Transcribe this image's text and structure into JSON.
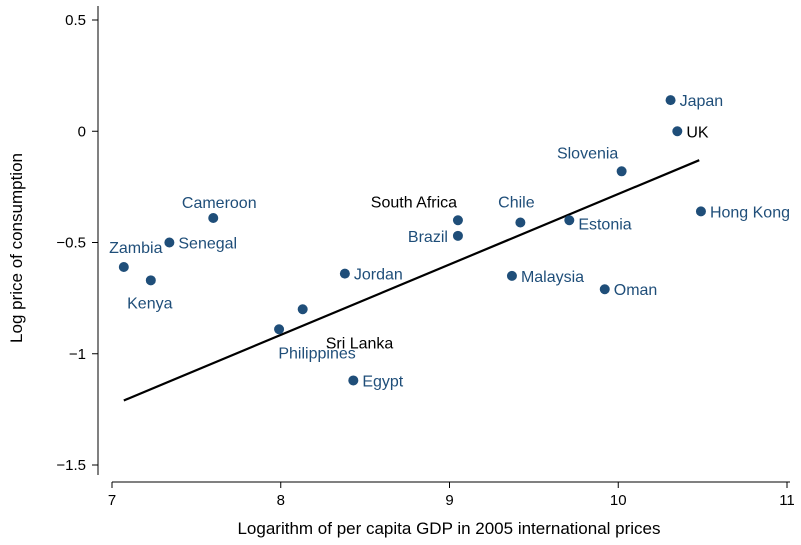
{
  "chart_data": {
    "type": "scatter",
    "xlabel": "Logarithm of per capita GDP in 2005 international prices",
    "ylabel": "Log price of consumption",
    "xlim": [
      6.95,
      11.05
    ],
    "ylim": [
      -1.6,
      0.52
    ],
    "xticks": [
      7,
      8,
      9,
      10,
      11
    ],
    "yticks": [
      0.5,
      0,
      -0.5,
      -1,
      -1.5
    ],
    "ytick_labels": [
      "0.5",
      "0",
      "−0.5",
      "−1",
      "−1.5"
    ],
    "grid": false,
    "colors": {
      "point": "#1f4e79",
      "label_blue": "#1f4e79",
      "label_black": "#000000",
      "fit_line": "#000000"
    },
    "points": [
      {
        "name": "Zambia",
        "x": 7.07,
        "y": -0.61,
        "label": "Zambia",
        "label_color": "blue",
        "anchor": "above"
      },
      {
        "name": "Kenya",
        "x": 7.23,
        "y": -0.67,
        "label": "Kenya",
        "label_color": "blue",
        "anchor": "below"
      },
      {
        "name": "Senegal",
        "x": 7.34,
        "y": -0.5,
        "label": "Senegal",
        "label_color": "blue",
        "anchor": "right"
      },
      {
        "name": "Cameroon",
        "x": 7.6,
        "y": -0.39,
        "label": "Cameroon",
        "label_color": "blue",
        "anchor": "above"
      },
      {
        "name": "Philippines",
        "x": 7.99,
        "y": -0.89,
        "label": "Philippines",
        "label_color": "blue",
        "anchor": "below"
      },
      {
        "name": "Sri Lanka",
        "x": 8.13,
        "y": -0.8,
        "label": "Sri Lanka",
        "label_color": "black",
        "anchor": "below-right"
      },
      {
        "name": "Jordan",
        "x": 8.38,
        "y": -0.64,
        "label": "Jordan",
        "label_color": "blue",
        "anchor": "right"
      },
      {
        "name": "Egypt",
        "x": 8.43,
        "y": -1.12,
        "label": "Egypt",
        "label_color": "blue",
        "anchor": "right"
      },
      {
        "name": "South Africa",
        "x": 9.05,
        "y": -0.4,
        "label": "South Africa",
        "label_color": "black",
        "anchor": "above-left"
      },
      {
        "name": "Brazil",
        "x": 9.05,
        "y": -0.47,
        "label": "Brazil",
        "label_color": "blue",
        "anchor": "left"
      },
      {
        "name": "Chile",
        "x": 9.42,
        "y": -0.41,
        "label": "Chile",
        "label_color": "blue",
        "anchor": "above"
      },
      {
        "name": "Malaysia",
        "x": 9.37,
        "y": -0.65,
        "label": "Malaysia",
        "label_color": "blue",
        "anchor": "right"
      },
      {
        "name": "Estonia",
        "x": 9.71,
        "y": -0.4,
        "label": "Estonia",
        "label_color": "blue",
        "anchor": "right-low"
      },
      {
        "name": "Oman",
        "x": 9.92,
        "y": -0.71,
        "label": "Oman",
        "label_color": "blue",
        "anchor": "right"
      },
      {
        "name": "Slovenia",
        "x": 10.02,
        "y": -0.18,
        "label": "Slovenia",
        "label_color": "blue",
        "anchor": "above-left"
      },
      {
        "name": "Japan",
        "x": 10.31,
        "y": 0.14,
        "label": "Japan",
        "label_color": "blue",
        "anchor": "right"
      },
      {
        "name": "UK",
        "x": 10.35,
        "y": 0.0,
        "label": "UK",
        "label_color": "black",
        "anchor": "right"
      },
      {
        "name": "Hong Kong",
        "x": 10.49,
        "y": -0.36,
        "label": "Hong Kong",
        "label_color": "blue",
        "anchor": "right"
      }
    ],
    "fit_line": {
      "x": [
        7.07,
        10.48
      ],
      "y": [
        -1.21,
        -0.13
      ]
    }
  }
}
